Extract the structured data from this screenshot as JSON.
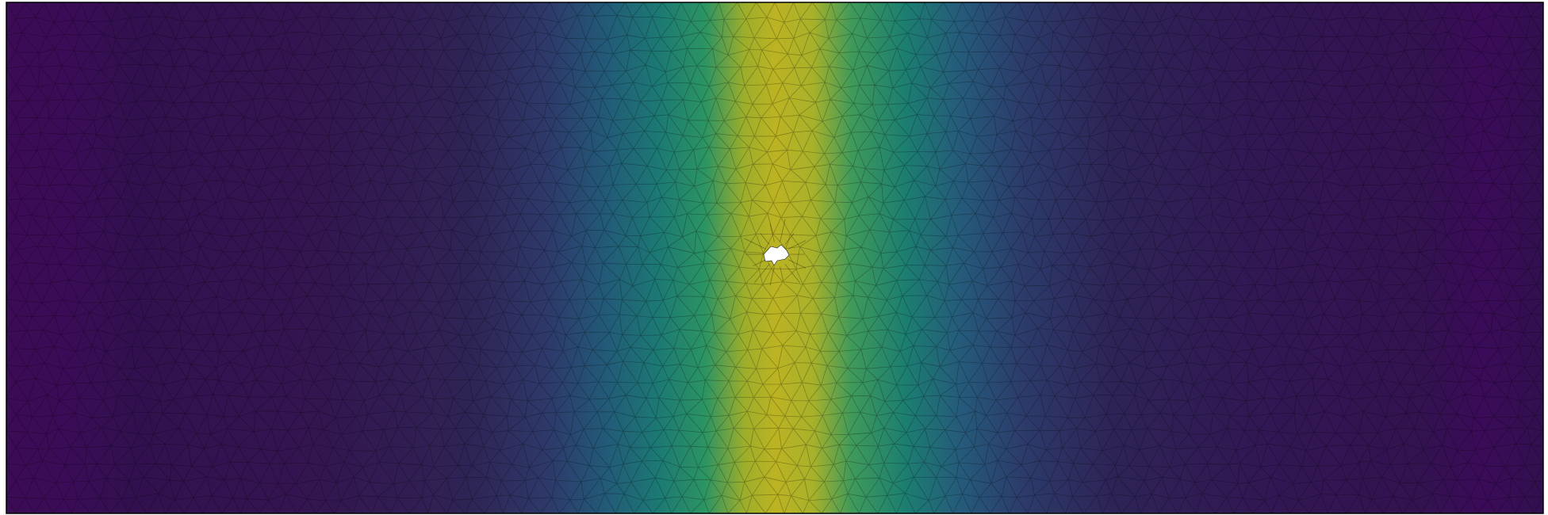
{
  "figure": {
    "description_kind": "finite-element mesh colored by scalar field",
    "colormap": "viridis",
    "background": "#ffffff",
    "frame_color": "#000000",
    "edge_color": "#000000",
    "field": {
      "peak_fraction_along_width": 0.5,
      "low_value_color": "#440154",
      "mid_color": "#21918c",
      "high_value_color": "#bcbd22"
    },
    "hole": {
      "present": true,
      "fill_color": "#ffffff"
    }
  }
}
